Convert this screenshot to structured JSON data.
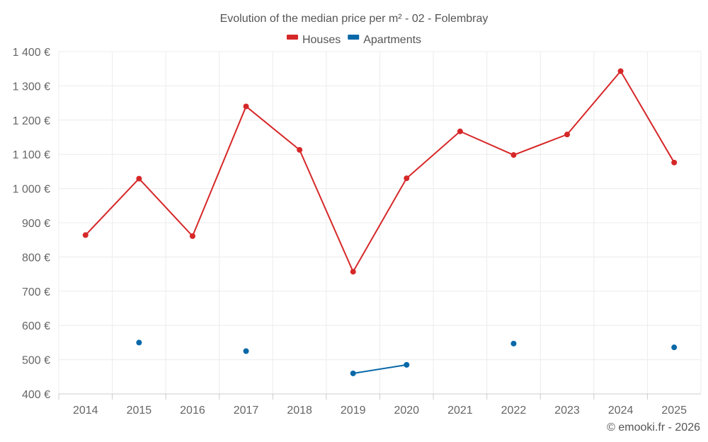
{
  "chart_data": {
    "type": "line",
    "title": "Evolution of the median price per m² - 02 - Folembray",
    "categories": [
      "2014",
      "2015",
      "2016",
      "2017",
      "2018",
      "2019",
      "2020",
      "2021",
      "2022",
      "2023",
      "2024",
      "2025"
    ],
    "series": [
      {
        "name": "Houses",
        "color": "#d62728",
        "values": [
          864,
          1029,
          861,
          1240,
          1113,
          757,
          1030,
          1167,
          1098,
          1158,
          1343,
          1076
        ]
      },
      {
        "name": "Apartments",
        "color": "#0868a8",
        "values": [
          null,
          550,
          null,
          525,
          null,
          460,
          485,
          null,
          547,
          null,
          null,
          536
        ]
      }
    ],
    "ylim": [
      400,
      1400
    ],
    "yticks": [
      400,
      500,
      600,
      700,
      800,
      900,
      1000,
      1100,
      1200,
      1300,
      1400
    ],
    "ytick_labels": [
      "400 €",
      "500 €",
      "600 €",
      "700 €",
      "800 €",
      "900 €",
      "1 000 €",
      "1 100 €",
      "1 200 €",
      "1 300 €",
      "1 400 €"
    ],
    "xlabel": "",
    "ylabel": "",
    "grid": true,
    "legend": "top-center"
  },
  "credit": "© emooki.fr - 2026"
}
